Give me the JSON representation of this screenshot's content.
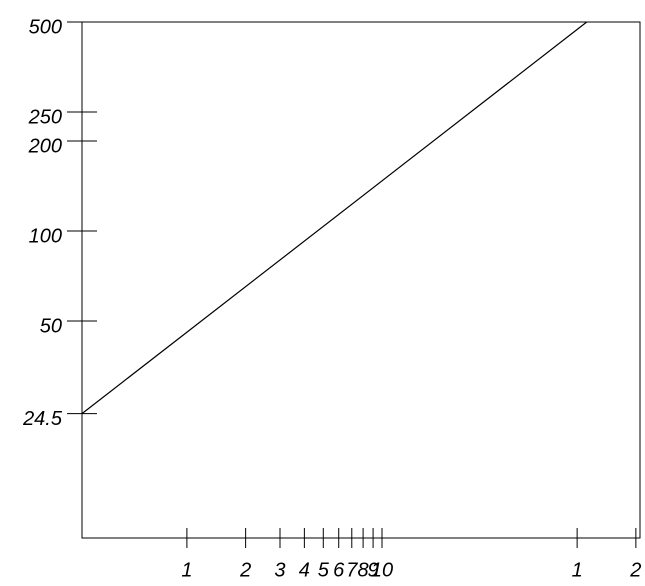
{
  "chart_data": {
    "type": "line",
    "x": [
      0.29,
      112
    ],
    "series": [
      {
        "values": [
          24.5,
          500
        ],
        "color": "#000000"
      }
    ],
    "xlim": [
      0.29,
      210
    ],
    "ylim": [
      9.4,
      500
    ],
    "xscale": "log",
    "yscale": "log",
    "xticks": [
      1,
      2,
      3,
      4,
      5,
      6,
      7,
      8,
      9,
      10,
      {
        "value": 100,
        "label": "1"
      },
      {
        "value": 200,
        "label": "2"
      }
    ],
    "yticks": [
      24.5,
      50,
      100,
      200,
      250,
      500
    ]
  }
}
